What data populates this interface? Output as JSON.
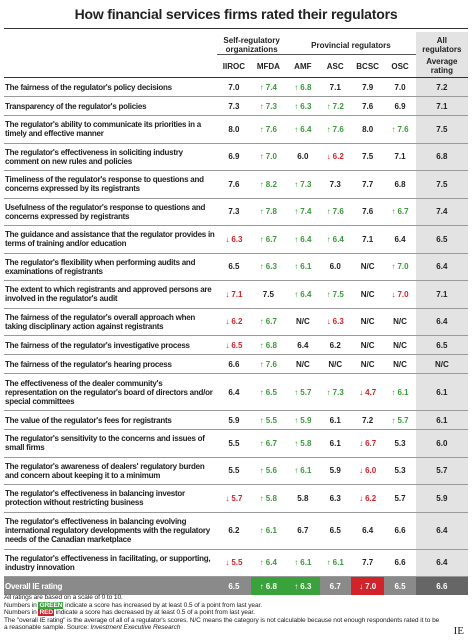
{
  "title": "How financial services firms rated their regulators",
  "header": {
    "groups": [
      "Self-regulatory organizations",
      "Provincial regulators",
      "All regulators"
    ],
    "columns": [
      "IIROC",
      "MFDA",
      "AMF",
      "ASC",
      "BCSC",
      "OSC",
      "Average rating"
    ]
  },
  "rows": [
    {
      "label": "The fairness of the regulator's policy decisions",
      "values": [
        "7.0",
        "7.4",
        "6.8",
        "7.1",
        "7.9",
        "7.0",
        "7.2"
      ],
      "changes": [
        null,
        "up",
        "up",
        null,
        null,
        null,
        null
      ]
    },
    {
      "label": "Transparency of the regulator's policies",
      "values": [
        "7.3",
        "7.3",
        "6.3",
        "7.2",
        "7.6",
        "6.9",
        "7.1"
      ],
      "changes": [
        null,
        "up",
        "up",
        "up",
        null,
        null,
        null
      ]
    },
    {
      "label": "The regulator's ability to communicate its priorities in a timely and effective manner",
      "values": [
        "8.0",
        "7.6",
        "6.4",
        "7.6",
        "8.0",
        "7.6",
        "7.5"
      ],
      "changes": [
        null,
        "up",
        "up",
        "up",
        null,
        "up",
        null
      ]
    },
    {
      "label": "The regulator's effectiveness in soliciting industry comment on new rules and policies",
      "values": [
        "6.9",
        "7.0",
        "6.0",
        "6.2",
        "7.5",
        "7.1",
        "6.8"
      ],
      "changes": [
        null,
        "up",
        null,
        "down",
        null,
        null,
        null
      ]
    },
    {
      "label": "Timeliness of the regulator's response to questions and concerns expressed by its registrants",
      "values": [
        "7.6",
        "8.2",
        "7.3",
        "7.3",
        "7.7",
        "6.8",
        "7.5"
      ],
      "changes": [
        null,
        "up",
        "up",
        null,
        null,
        null,
        null
      ]
    },
    {
      "label": "Usefulness of the regulator's response to questions and concerns expressed by registrants",
      "values": [
        "7.3",
        "7.8",
        "7.4",
        "7.6",
        "7.6",
        "6.7",
        "7.4"
      ],
      "changes": [
        null,
        "up",
        "up",
        "up",
        null,
        "up",
        null
      ]
    },
    {
      "label": "The guidance and assistance that the regulator provides in terms of training and/or education",
      "values": [
        "6.3",
        "6.7",
        "6.4",
        "6.4",
        "7.1",
        "6.4",
        "6.5"
      ],
      "changes": [
        "down",
        "up",
        "up",
        "up",
        null,
        null,
        null
      ]
    },
    {
      "label": "The regulator's flexibility when performing audits and examinations of registrants",
      "values": [
        "6.5",
        "6.3",
        "6.1",
        "6.0",
        "N/C",
        "7.0",
        "6.4"
      ],
      "changes": [
        null,
        "up",
        "up",
        null,
        null,
        "up",
        null
      ]
    },
    {
      "label": "The extent to which registrants and approved persons are involved in the regulator's audit",
      "values": [
        "7.1",
        "7.5",
        "6.4",
        "7.5",
        "N/C",
        "7.0",
        "7.1"
      ],
      "changes": [
        "down",
        null,
        "up",
        "up",
        null,
        "down",
        null
      ]
    },
    {
      "label": "The fairness of the regulator's overall approach when taking disciplinary action against registrants",
      "values": [
        "6.2",
        "6.7",
        "N/C",
        "6.3",
        "N/C",
        "N/C",
        "6.4"
      ],
      "changes": [
        "down",
        "up",
        null,
        "down",
        null,
        null,
        null
      ]
    },
    {
      "label": "The fairness of the regulator's investigative process",
      "values": [
        "6.5",
        "6.8",
        "6.4",
        "6.2",
        "N/C",
        "N/C",
        "6.5"
      ],
      "changes": [
        "down",
        "up",
        null,
        null,
        null,
        null,
        null
      ]
    },
    {
      "label": "The fairness of the regulator's hearing process",
      "values": [
        "6.6",
        "7.6",
        "N/C",
        "N/C",
        "N/C",
        "N/C",
        "N/C"
      ],
      "changes": [
        null,
        "up",
        null,
        null,
        null,
        null,
        null
      ]
    },
    {
      "label": "The effectiveness of the dealer community's representation on the regulator's board of directors and/or special committees",
      "values": [
        "6.4",
        "6.5",
        "5.7",
        "7.3",
        "4.7",
        "6.1",
        "6.1"
      ],
      "changes": [
        null,
        "up",
        "up",
        "up",
        "down",
        "up",
        null
      ]
    },
    {
      "label": "The value of the regulator's fees for registrants",
      "values": [
        "5.9",
        "5.5",
        "5.9",
        "6.1",
        "7.2",
        "5.7",
        "6.1"
      ],
      "changes": [
        null,
        "up",
        "up",
        null,
        null,
        "up",
        null
      ]
    },
    {
      "label": "The regulator's sensitivity to the concerns and issues of small firms",
      "values": [
        "5.5",
        "6.7",
        "5.8",
        "6.1",
        "6.7",
        "5.3",
        "6.0"
      ],
      "changes": [
        null,
        "up",
        "up",
        null,
        "down",
        null,
        null
      ]
    },
    {
      "label": "The regulator's awareness of dealers' regulatory burden and concern about keeping it to a minimum",
      "values": [
        "5.5",
        "5.6",
        "6.1",
        "5.9",
        "6.0",
        "5.3",
        "5.7"
      ],
      "changes": [
        null,
        "up",
        "up",
        null,
        "down",
        null,
        null
      ]
    },
    {
      "label": "The regulator's effectiveness in balancing investor protection without restricting business",
      "values": [
        "5.7",
        "5.8",
        "5.8",
        "6.3",
        "6.2",
        "5.7",
        "5.9"
      ],
      "changes": [
        "down",
        "up",
        null,
        null,
        "down",
        null,
        null
      ]
    },
    {
      "label": "The regulator's effectiveness in balancing evolving international regulatory developments with the regulatory needs of the Canadian marketplace",
      "values": [
        "6.2",
        "6.1",
        "6.7",
        "6.5",
        "6.4",
        "6.6",
        "6.4"
      ],
      "changes": [
        null,
        "up",
        null,
        null,
        null,
        null,
        null
      ]
    },
    {
      "label": "The regulator's effectiveness in facilitating, or supporting, industry innovation",
      "values": [
        "5.5",
        "6.4",
        "6.1",
        "6.1",
        "7.7",
        "6.6",
        "6.4"
      ],
      "changes": [
        "down",
        "up",
        "up",
        "up",
        null,
        null,
        null
      ]
    }
  ],
  "overall": {
    "label": "Overall IE rating",
    "values": [
      "6.5",
      "6.8",
      "6.3",
      "6.7",
      "7.0",
      "6.5",
      "6.6"
    ],
    "changes": [
      null,
      "up",
      "up",
      null,
      "down",
      null,
      null
    ]
  },
  "footnotes": {
    "scale": "All ratings are based on a scale of 0 to 10.",
    "green": {
      "before": "Numbers in",
      "highlight": "GREEN",
      "after": "indicate a score has increased by at least 0.5 of a point from last year."
    },
    "red": {
      "before": "Numbers in",
      "highlight": "RED",
      "after": "indicate a score has decreased by at least 0.5 of a point from last year."
    },
    "note": "The \"overall IE rating\" is the average of all of a regulator's scores. N/C means the category is not calculable because not enough respondents rated it to be a reasonable sample.",
    "source_label": "Source:",
    "source": "Investment Executive Research"
  },
  "logo": "IE"
}
